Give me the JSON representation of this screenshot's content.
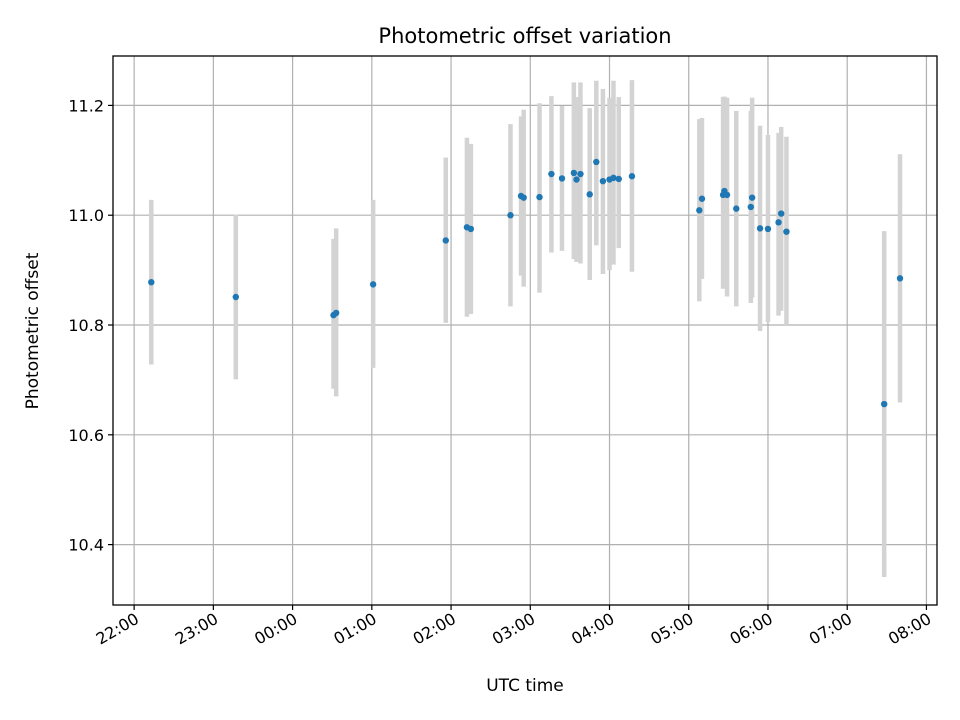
{
  "chart_data": {
    "type": "scatter",
    "title": "Photometric offset variation",
    "xlabel": "UTC time",
    "ylabel": "Photometric offset",
    "grid": true,
    "x_unit": "UTC hours (22:00 evening to 08:00 next morning)",
    "xlim": [
      "21:44",
      "08:08"
    ],
    "ylim": [
      10.29,
      11.29
    ],
    "x_ticks": [
      "22:00",
      "23:00",
      "00:00",
      "01:00",
      "02:00",
      "03:00",
      "04:00",
      "05:00",
      "06:00",
      "07:00",
      "08:00"
    ],
    "y_ticks": [
      10.4,
      10.6,
      10.8,
      11.0,
      11.2
    ],
    "y_tick_labels": [
      "10.4",
      "10.6",
      "10.8",
      "11.0",
      "11.2"
    ],
    "colors": {
      "marker": "#1f77b4",
      "errorbar": "#d3d3d3"
    },
    "points": [
      {
        "x": "22:13",
        "y": 10.878,
        "ylo": 10.728,
        "yhi": 11.028
      },
      {
        "x": "23:17",
        "y": 10.851,
        "ylo": 10.701,
        "yhi": 11.001
      },
      {
        "x": "00:31",
        "y": 10.818,
        "ylo": 10.684,
        "yhi": 10.957
      },
      {
        "x": "00:33",
        "y": 10.822,
        "ylo": 10.67,
        "yhi": 10.976
      },
      {
        "x": "01:01",
        "y": 10.874,
        "ylo": 10.722,
        "yhi": 11.028
      },
      {
        "x": "01:56",
        "y": 10.954,
        "ylo": 10.804,
        "yhi": 11.105
      },
      {
        "x": "02:12",
        "y": 10.978,
        "ylo": 10.815,
        "yhi": 11.141
      },
      {
        "x": "02:15",
        "y": 10.975,
        "ylo": 10.82,
        "yhi": 11.13
      },
      {
        "x": "02:45",
        "y": 11.0,
        "ylo": 10.834,
        "yhi": 11.166
      },
      {
        "x": "02:53",
        "y": 11.035,
        "ylo": 10.89,
        "yhi": 11.18
      },
      {
        "x": "02:55",
        "y": 11.032,
        "ylo": 10.87,
        "yhi": 11.192
      },
      {
        "x": "03:07",
        "y": 11.033,
        "ylo": 10.859,
        "yhi": 11.204
      },
      {
        "x": "03:16",
        "y": 11.075,
        "ylo": 10.932,
        "yhi": 11.217
      },
      {
        "x": "03:24",
        "y": 11.067,
        "ylo": 10.935,
        "yhi": 11.199
      },
      {
        "x": "03:33",
        "y": 11.077,
        "ylo": 10.92,
        "yhi": 11.242
      },
      {
        "x": "03:35",
        "y": 11.065,
        "ylo": 10.915,
        "yhi": 11.215
      },
      {
        "x": "03:38",
        "y": 11.075,
        "ylo": 10.912,
        "yhi": 11.242
      },
      {
        "x": "03:45",
        "y": 11.038,
        "ylo": 10.882,
        "yhi": 11.195
      },
      {
        "x": "03:50",
        "y": 11.097,
        "ylo": 10.945,
        "yhi": 11.245
      },
      {
        "x": "03:55",
        "y": 11.062,
        "ylo": 10.893,
        "yhi": 11.23
      },
      {
        "x": "04:00",
        "y": 11.065,
        "ylo": 10.9,
        "yhi": 11.214
      },
      {
        "x": "04:03",
        "y": 11.068,
        "ylo": 10.91,
        "yhi": 11.245
      },
      {
        "x": "04:07",
        "y": 11.066,
        "ylo": 10.94,
        "yhi": 11.215
      },
      {
        "x": "04:17",
        "y": 11.071,
        "ylo": 10.897,
        "yhi": 11.246
      },
      {
        "x": "05:08",
        "y": 11.009,
        "ylo": 10.843,
        "yhi": 11.175
      },
      {
        "x": "05:10",
        "y": 11.03,
        "ylo": 10.884,
        "yhi": 11.177
      },
      {
        "x": "05:26",
        "y": 11.037,
        "ylo": 10.866,
        "yhi": 11.215
      },
      {
        "x": "05:27",
        "y": 11.044,
        "ylo": 10.868,
        "yhi": 11.216
      },
      {
        "x": "05:29",
        "y": 11.037,
        "ylo": 10.852,
        "yhi": 11.214
      },
      {
        "x": "05:36",
        "y": 11.012,
        "ylo": 10.834,
        "yhi": 11.19
      },
      {
        "x": "05:47",
        "y": 11.015,
        "ylo": 10.84,
        "yhi": 11.19
      },
      {
        "x": "05:48",
        "y": 11.032,
        "ylo": 10.85,
        "yhi": 11.214
      },
      {
        "x": "05:54",
        "y": 10.976,
        "ylo": 10.789,
        "yhi": 11.163
      },
      {
        "x": "06:00",
        "y": 10.975,
        "ylo": 10.805,
        "yhi": 11.146
      },
      {
        "x": "06:08",
        "y": 10.987,
        "ylo": 10.817,
        "yhi": 11.15
      },
      {
        "x": "06:10",
        "y": 11.003,
        "ylo": 10.826,
        "yhi": 11.161
      },
      {
        "x": "06:14",
        "y": 10.97,
        "ylo": 10.8,
        "yhi": 11.143
      },
      {
        "x": "07:28",
        "y": 10.656,
        "ylo": 10.341,
        "yhi": 10.971
      },
      {
        "x": "07:40",
        "y": 10.885,
        "ylo": 10.659,
        "yhi": 11.111
      }
    ]
  }
}
